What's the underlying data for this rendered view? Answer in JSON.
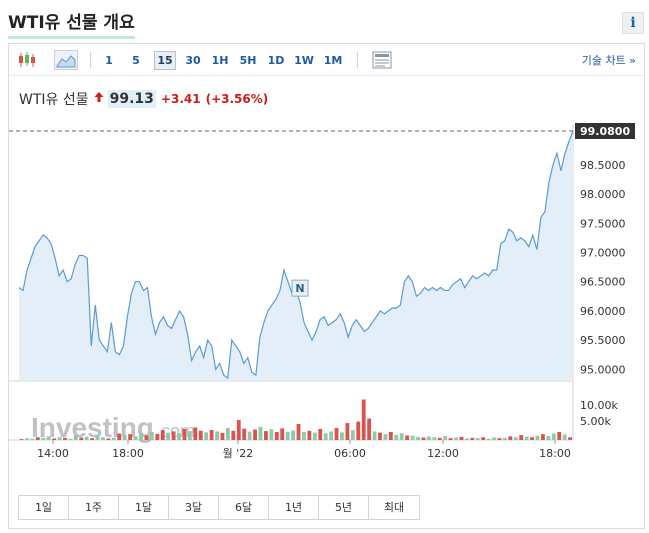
{
  "page": {
    "title": "WTI유 선물 개요",
    "info_glyph": "i"
  },
  "toolbar": {
    "timeframes": [
      {
        "label": "1",
        "active": false
      },
      {
        "label": "5",
        "active": false
      },
      {
        "label": "15",
        "active": true
      },
      {
        "label": "30",
        "active": false
      },
      {
        "label": "1H",
        "active": false
      },
      {
        "label": "5H",
        "active": false
      },
      {
        "label": "1D",
        "active": false
      },
      {
        "label": "1W",
        "active": false
      },
      {
        "label": "1M",
        "active": false
      }
    ],
    "tech_chart_label": "기술 차트 »"
  },
  "quote": {
    "name": "WTI유 선물",
    "price": "99.13",
    "change": "+3.41",
    "change_pct": "(+3.56%)"
  },
  "colors": {
    "line": "#5b9bd5",
    "area": "#e3eef8",
    "up": "#d11b1b",
    "volume_up": "#d9534f",
    "volume_down": "#8fc9a6",
    "price_tag": "#333333"
  },
  "chart_data": {
    "type": "area",
    "current_price_label": "99.0800",
    "y_ticks": [
      "98.5000",
      "98.0000",
      "97.5000",
      "97.0000",
      "96.5000",
      "96.0000",
      "95.5000",
      "95.0000"
    ],
    "y_range": [
      94.8,
      99.08
    ],
    "x_ticks": [
      "14:00",
      "18:00",
      "월 '22",
      "06:00",
      "12:00",
      "18:00"
    ],
    "values": [
      96.4,
      96.35,
      96.7,
      96.9,
      97.1,
      97.2,
      97.3,
      97.25,
      97.15,
      96.9,
      96.6,
      96.7,
      96.5,
      96.55,
      96.8,
      96.95,
      96.95,
      96.9,
      95.4,
      96.1,
      95.5,
      95.4,
      95.3,
      95.8,
      95.3,
      95.25,
      95.4,
      95.9,
      96.3,
      96.5,
      96.5,
      96.35,
      96.4,
      95.9,
      95.6,
      95.8,
      95.9,
      95.75,
      95.7,
      95.85,
      96.0,
      95.9,
      95.6,
      95.15,
      95.3,
      95.4,
      95.2,
      95.5,
      95.4,
      95.0,
      95.1,
      94.9,
      94.85,
      95.5,
      95.4,
      95.3,
      95.1,
      95.2,
      94.95,
      94.9,
      95.55,
      95.8,
      96.0,
      96.1,
      96.2,
      96.35,
      96.7,
      96.5,
      96.3,
      96.35,
      96.15,
      95.8,
      95.65,
      95.5,
      95.65,
      95.85,
      95.9,
      95.75,
      95.8,
      95.85,
      95.95,
      95.8,
      95.55,
      95.75,
      95.85,
      95.75,
      95.65,
      95.7,
      95.8,
      95.9,
      96.0,
      95.95,
      96.0,
      96.05,
      96.05,
      96.1,
      96.5,
      96.6,
      96.5,
      96.25,
      96.3,
      96.4,
      96.35,
      96.4,
      96.35,
      96.4,
      96.35,
      96.35,
      96.45,
      96.5,
      96.55,
      96.4,
      96.5,
      96.6,
      96.55,
      96.6,
      96.65,
      96.6,
      96.7,
      96.7,
      97.15,
      97.2,
      97.4,
      97.35,
      97.2,
      97.25,
      97.2,
      97.1,
      97.3,
      97.05,
      97.6,
      97.7,
      98.2,
      98.5,
      98.7,
      98.4,
      98.7,
      98.9,
      99.08
    ],
    "volume_ticks": [
      "10.00k",
      "5.00k"
    ],
    "volume_max": 15000,
    "volume": [
      {
        "v": 300,
        "up": true
      },
      {
        "v": 600,
        "up": false
      },
      {
        "v": 400,
        "up": false
      },
      {
        "v": 900,
        "up": true
      },
      {
        "v": 700,
        "up": false
      },
      {
        "v": 1200,
        "up": false
      },
      {
        "v": 500,
        "up": true
      },
      {
        "v": 900,
        "up": false
      },
      {
        "v": 700,
        "up": true
      },
      {
        "v": 400,
        "up": false
      },
      {
        "v": 1500,
        "up": false
      },
      {
        "v": 800,
        "up": true
      },
      {
        "v": 1100,
        "up": false
      },
      {
        "v": 600,
        "up": true
      },
      {
        "v": 1300,
        "up": false
      },
      {
        "v": 900,
        "up": false
      },
      {
        "v": 500,
        "up": true
      },
      {
        "v": 700,
        "up": false
      },
      {
        "v": 2100,
        "up": true
      },
      {
        "v": 1600,
        "up": false
      },
      {
        "v": 1900,
        "up": true
      },
      {
        "v": 1200,
        "up": false
      },
      {
        "v": 2300,
        "up": false
      },
      {
        "v": 1500,
        "up": true
      },
      {
        "v": 2600,
        "up": false
      },
      {
        "v": 2000,
        "up": true
      },
      {
        "v": 3200,
        "up": true
      },
      {
        "v": 2400,
        "up": false
      },
      {
        "v": 2800,
        "up": true
      },
      {
        "v": 2200,
        "up": false
      },
      {
        "v": 3600,
        "up": true
      },
      {
        "v": 2900,
        "up": false
      },
      {
        "v": 4100,
        "up": true
      },
      {
        "v": 3000,
        "up": true
      },
      {
        "v": 2500,
        "up": false
      },
      {
        "v": 3300,
        "up": true
      },
      {
        "v": 2800,
        "up": false
      },
      {
        "v": 2300,
        "up": true
      },
      {
        "v": 3900,
        "up": false
      },
      {
        "v": 3000,
        "up": true
      },
      {
        "v": 6500,
        "up": true
      },
      {
        "v": 3700,
        "up": true
      },
      {
        "v": 2700,
        "up": false
      },
      {
        "v": 3400,
        "up": true
      },
      {
        "v": 4300,
        "up": false
      },
      {
        "v": 2900,
        "up": true
      },
      {
        "v": 3500,
        "up": false
      },
      {
        "v": 2600,
        "up": true
      },
      {
        "v": 3800,
        "up": true
      },
      {
        "v": 2700,
        "up": false
      },
      {
        "v": 3100,
        "up": false
      },
      {
        "v": 5200,
        "up": true
      },
      {
        "v": 2600,
        "up": false
      },
      {
        "v": 3000,
        "up": true
      },
      {
        "v": 2400,
        "up": false
      },
      {
        "v": 3600,
        "up": true
      },
      {
        "v": 2200,
        "up": false
      },
      {
        "v": 2800,
        "up": false
      },
      {
        "v": 3900,
        "up": true
      },
      {
        "v": 2500,
        "up": false
      },
      {
        "v": 5500,
        "up": true
      },
      {
        "v": 3200,
        "up": false
      },
      {
        "v": 6000,
        "up": true
      },
      {
        "v": 13200,
        "up": true
      },
      {
        "v": 7000,
        "up": true
      },
      {
        "v": 2800,
        "up": false
      },
      {
        "v": 2400,
        "up": true
      },
      {
        "v": 1900,
        "up": false
      },
      {
        "v": 2600,
        "up": true
      },
      {
        "v": 1700,
        "up": false
      },
      {
        "v": 2200,
        "up": false
      },
      {
        "v": 1500,
        "up": true
      },
      {
        "v": 1400,
        "up": false
      },
      {
        "v": 1000,
        "up": false
      },
      {
        "v": 800,
        "up": true
      },
      {
        "v": 1100,
        "up": false
      },
      {
        "v": 900,
        "up": false
      },
      {
        "v": 700,
        "up": true
      },
      {
        "v": 1300,
        "up": false
      },
      {
        "v": 600,
        "up": true
      },
      {
        "v": 800,
        "up": false
      },
      {
        "v": 1000,
        "up": true
      },
      {
        "v": 500,
        "up": false
      },
      {
        "v": 700,
        "up": true
      },
      {
        "v": 600,
        "up": false
      },
      {
        "v": 900,
        "up": true
      },
      {
        "v": 400,
        "up": false
      },
      {
        "v": 800,
        "up": false
      },
      {
        "v": 600,
        "up": true
      },
      {
        "v": 700,
        "up": false
      },
      {
        "v": 1200,
        "up": true
      },
      {
        "v": 900,
        "up": false
      },
      {
        "v": 1600,
        "up": true
      },
      {
        "v": 1100,
        "up": false
      },
      {
        "v": 900,
        "up": true
      },
      {
        "v": 1400,
        "up": false
      },
      {
        "v": 1900,
        "up": true
      },
      {
        "v": 1300,
        "up": false
      },
      {
        "v": 2100,
        "up": false
      },
      {
        "v": 2600,
        "up": true
      },
      {
        "v": 1800,
        "up": false
      },
      {
        "v": 900,
        "up": true
      }
    ],
    "event_marker_label": "N",
    "event_marker_index": 70,
    "watermark": {
      "main": "Investing",
      "suffix": ".com"
    }
  },
  "ranges": [
    "1일",
    "1주",
    "1달",
    "3달",
    "6달",
    "1년",
    "5년",
    "최대"
  ]
}
